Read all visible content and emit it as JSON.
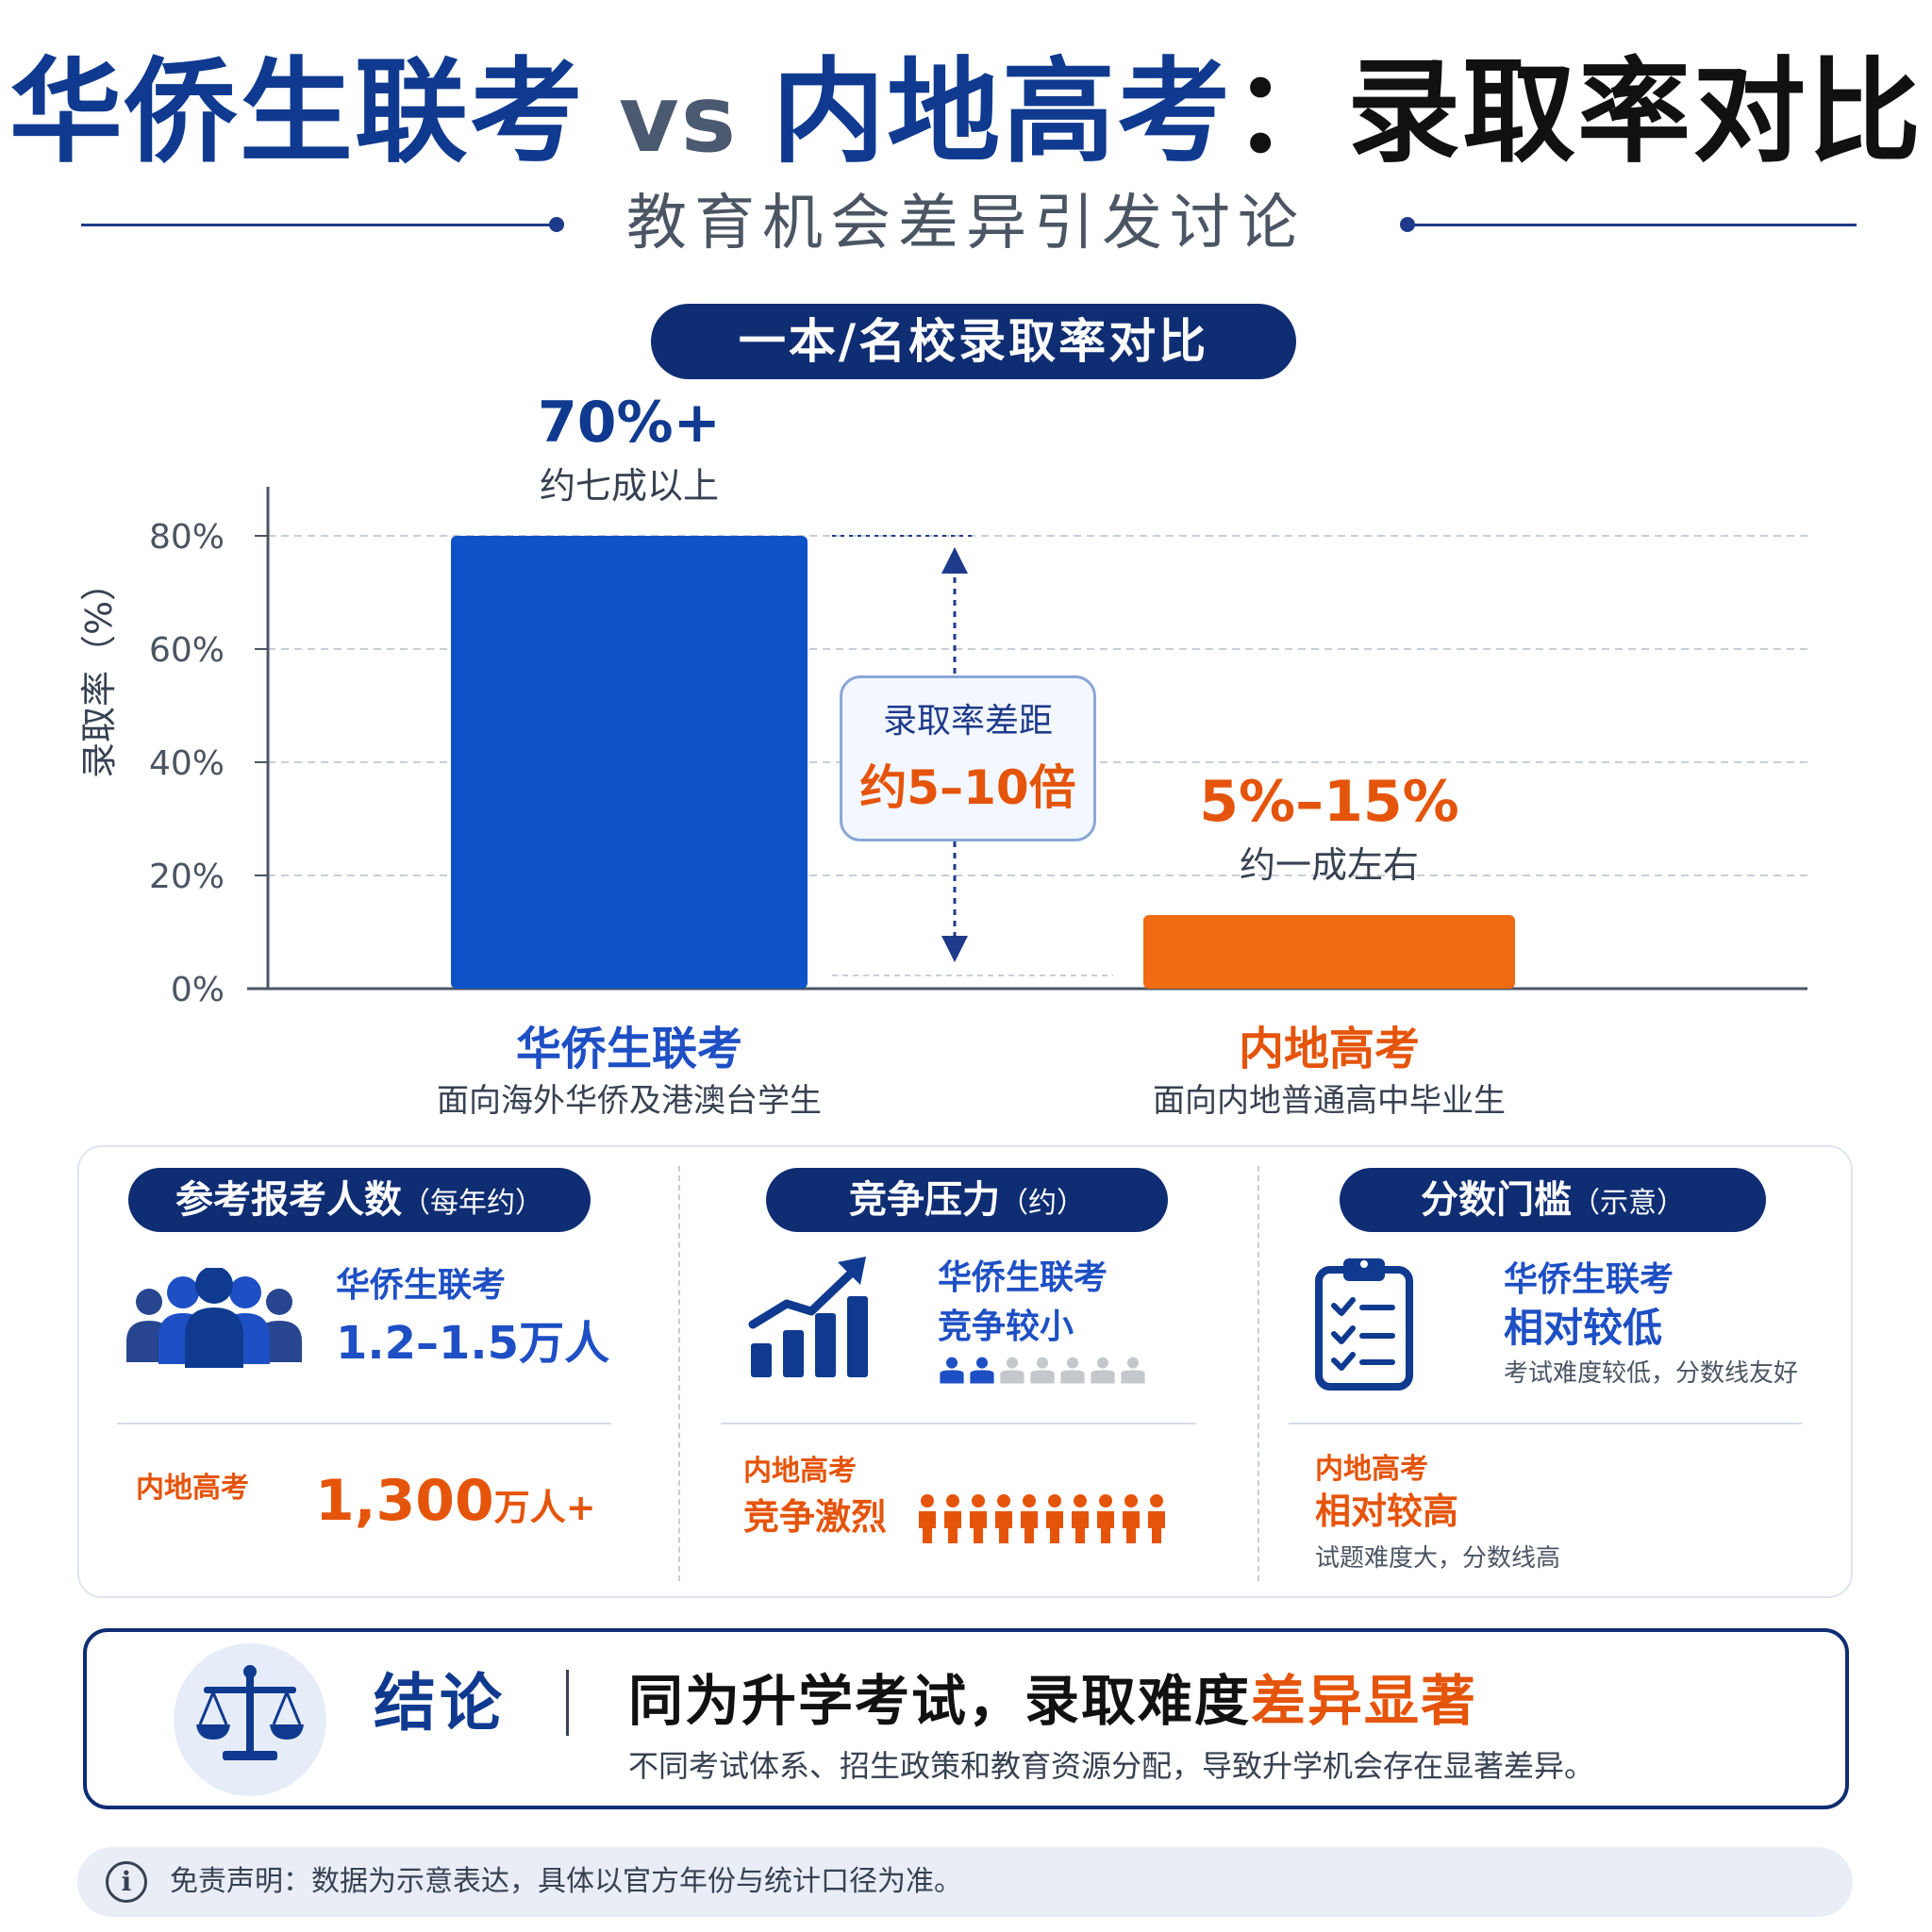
{
  "title": {
    "part_a": "华侨生联考",
    "vs": "vs",
    "part_b": "内地高考",
    "part_c": "：录取率对比"
  },
  "subtitle": "教育机会差异引发讨论",
  "chart_section_title": "一本/名校录取率对比",
  "chart_data": {
    "type": "bar",
    "title": "一本/名校录取率对比",
    "ylabel": "录取率（%）",
    "ylim": [
      0,
      80
    ],
    "yticks": [
      "0%",
      "20%",
      "40%",
      "60%",
      "80%"
    ],
    "grid": true,
    "categories": [
      "华侨生联考",
      "内地高考"
    ],
    "category_subtitles": [
      "面向海外华侨及港澳台学生",
      "面向内地普通高中毕业生"
    ],
    "values": [
      80,
      13
    ],
    "value_labels": [
      "70%+",
      "5%–15%"
    ],
    "value_sublabels": [
      "约七成以上",
      "约一成左右"
    ],
    "colors": [
      "#0f52c7",
      "#ef6a10"
    ],
    "annotation": {
      "title": "录取率差距",
      "value": "约5–10倍"
    }
  },
  "stats": {
    "population": {
      "title": "参考报考人数",
      "note": "（每年约）",
      "hk_label": "华侨生联考",
      "hk_value": "1.2–1.5万人",
      "ml_label": "内地高考",
      "ml_value": "1,300",
      "ml_unit": "万人+"
    },
    "competition": {
      "title": "竞争压力",
      "note": "（约）",
      "hk_label": "华侨生联考",
      "hk_value": "竞争较小",
      "ml_label": "内地高考",
      "ml_value": "竞争激烈"
    },
    "threshold": {
      "title": "分数门槛",
      "note": "（示意）",
      "hk_label": "华侨生联考",
      "hk_value": "相对较低",
      "hk_note": "考试难度较低，分数线友好",
      "ml_label": "内地高考",
      "ml_value": "相对较高",
      "ml_note": "试题难度大，分数线高"
    }
  },
  "conclusion": {
    "label": "结论",
    "headline": "同为升学考试，录取难度",
    "headline_em": "差异显著",
    "sub": "不同考试体系、招生政策和教育资源分配，导致升学机会存在显著差异。"
  },
  "disclaimer": {
    "icon": "info-icon",
    "glyph": "i",
    "text": "免责声明：数据为示意表达，具体以官方年份与统计口径为准。"
  },
  "colors": {
    "navy": "#0f2d73",
    "blue": "#1e4fc4",
    "orange": "#e5540b",
    "person_gray": "#c4c7cc"
  }
}
